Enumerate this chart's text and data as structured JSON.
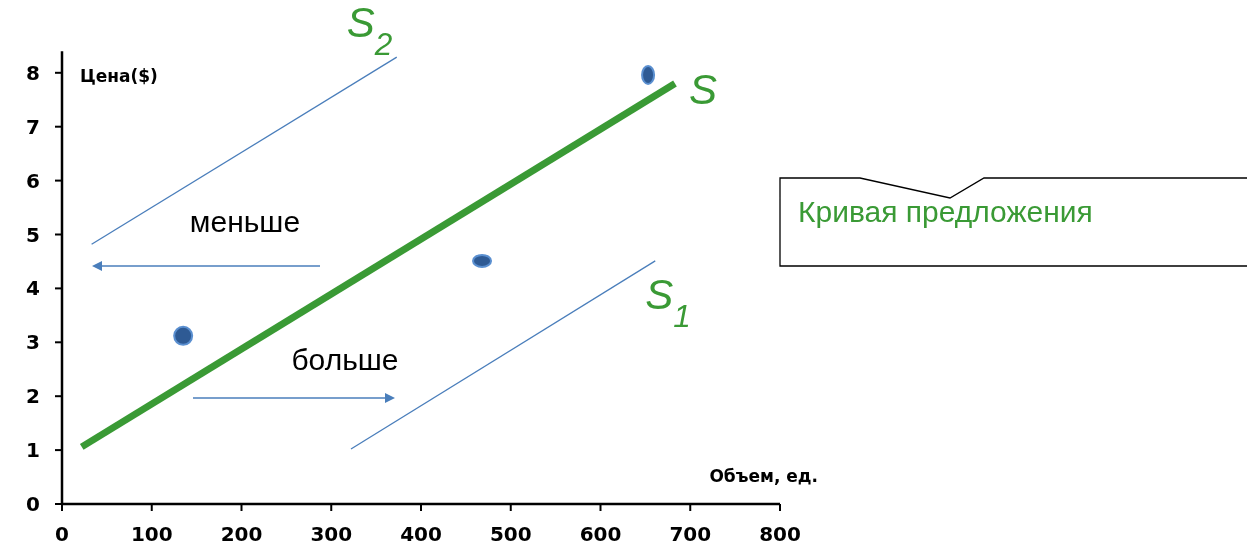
{
  "chart_data": {
    "type": "line",
    "xlabel": "Объем, ед.",
    "ylabel": "Цена($)",
    "xlim": [
      0,
      800
    ],
    "xticks": [
      0,
      100,
      200,
      300,
      400,
      500,
      600,
      700,
      800
    ],
    "ylim": [
      0,
      8.4
    ],
    "yticks": [
      0,
      1,
      2,
      3,
      4,
      5,
      6,
      7,
      8
    ],
    "grid": false,
    "marker": "none",
    "line_style": "solid",
    "series": [
      {
        "name": "S",
        "color": "#3a9a35",
        "x": [
          22,
          683
        ],
        "values": [
          1.06,
          7.8
        ]
      },
      {
        "name": "S$_{1}$",
        "color": "#4a7ebb",
        "x": [
          322,
          661
        ],
        "values": [
          1.02,
          4.51
        ]
      },
      {
        "name": "S$_{2}$",
        "color": "#4a7ebb",
        "x": [
          33,
          373
        ],
        "values": [
          4.82,
          8.29
        ]
      },
      {
        "type": "scatter",
        "color": "#2e5a94",
        "marker": "circle",
        "x": [
          135,
          468,
          653
        ],
        "values": [
          3.12,
          4.51,
          7.96
        ]
      }
    ],
    "annotations": [
      "меньше",
      "больше",
      "Кривая предложения"
    ]
  }
}
